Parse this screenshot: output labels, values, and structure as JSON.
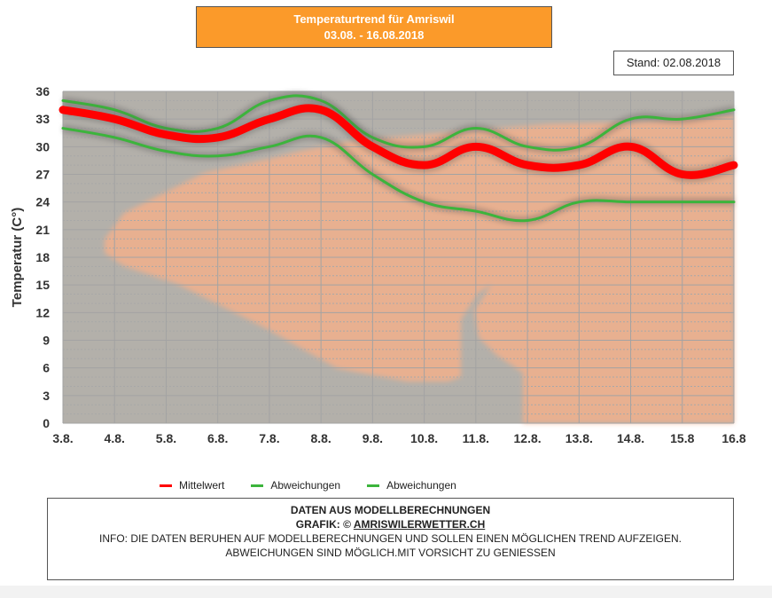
{
  "header": {
    "title_line1": "Temperaturtrend für Amriswil",
    "title_line2": "03.08. - 16.08.2018",
    "stand": "Stand: 02.08.2018"
  },
  "colors": {
    "title_bg": "#fb9a2a",
    "mean": "#ff0000",
    "deviation": "#3cb43c",
    "plot_bg": "#b3b0aa",
    "plot_warm": "#f2b08c"
  },
  "chart_data": {
    "type": "line",
    "title": "Temperaturtrend für Amriswil 03.08. - 16.08.2018",
    "xlabel": "",
    "ylabel": "Temperatur (C°)",
    "ylim": [
      0,
      36
    ],
    "yticks": [
      0,
      3,
      6,
      9,
      12,
      15,
      18,
      21,
      24,
      27,
      30,
      33,
      36
    ],
    "categories": [
      "3.8.",
      "4.8.",
      "5.8.",
      "6.8.",
      "7.8.",
      "8.8.",
      "9.8.",
      "10.8.",
      "11.8.",
      "12.8.",
      "13.8.",
      "14.8.",
      "15.8",
      "16.8"
    ],
    "grid": true,
    "legend_position": "bottom",
    "series": [
      {
        "name": "Mittelwert",
        "color": "#ff0000",
        "values": [
          34,
          33,
          31.3,
          31,
          33,
          34,
          30,
          28,
          30,
          28,
          28,
          30,
          27,
          28
        ]
      },
      {
        "name": "Abweichungen",
        "color": "#3cb43c",
        "values": [
          35,
          34,
          32,
          32,
          35,
          35,
          31,
          30,
          32,
          30,
          30,
          33,
          33,
          34
        ]
      },
      {
        "name": "Abweichungen",
        "color": "#3cb43c",
        "values": [
          32,
          31,
          29.5,
          29,
          30,
          31,
          27,
          24,
          23,
          22,
          24,
          24,
          24,
          24
        ]
      }
    ]
  },
  "legend": [
    {
      "label": "Mittelwert",
      "color": "#ff0000"
    },
    {
      "label": "Abweichungen",
      "color": "#3cb43c"
    },
    {
      "label": "Abweichungen",
      "color": "#3cb43c"
    }
  ],
  "info": {
    "line1": "DATEN AUS MODELLBERECHNUNGEN",
    "line2_prefix": "GRAFIK: © ",
    "line2_link": "AMRISWILERWETTER.CH",
    "line3": "INFO: DIE DATEN BERUHEN AUF MODELLBERECHNUNGEN UND SOLLEN EINEN MÖGLICHEN TREND AUFZEIGEN.",
    "line4": "ABWEICHUNGEN SIND MÖGLICH.MIT VORSICHT ZU GENIESSEN"
  }
}
